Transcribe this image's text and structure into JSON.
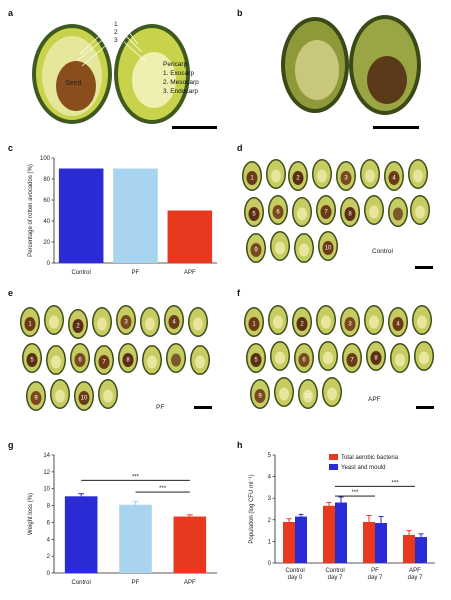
{
  "panels": {
    "a": "a",
    "b": "b",
    "c": "c",
    "d": "d",
    "e": "e",
    "f": "f",
    "g": "g",
    "h": "h"
  },
  "panel_a": {
    "markers": [
      "1",
      "2",
      "3"
    ],
    "seed_label": "Seed",
    "legend_title": "Pericarp",
    "legend_items": [
      "1. Exocarp",
      "2. Mesocarp",
      "3. Endocarp"
    ]
  },
  "panel_d": {
    "label": "Control",
    "fruit_numbers": [
      "1",
      "2",
      "3",
      "4",
      "5",
      "6",
      "7",
      "8",
      "9",
      "10"
    ]
  },
  "panel_e": {
    "label": "PF",
    "fruit_numbers": [
      "1",
      "2",
      "3",
      "4",
      "5",
      "6",
      "7",
      "8",
      "9",
      "10"
    ]
  },
  "panel_f": {
    "label": "APF",
    "fruit_numbers": [
      "1",
      "2",
      "3",
      "4",
      "5",
      "6",
      "7",
      "8",
      "9",
      "10"
    ]
  },
  "chart_data": [
    {
      "id": "c",
      "type": "bar",
      "categories": [
        "Control",
        "PF",
        "APF"
      ],
      "values": [
        90,
        90,
        50
      ],
      "ylabel": "Percentage of rotten avocados (%)",
      "ylim": [
        0,
        100
      ],
      "yticks": [
        "0",
        "20",
        "40",
        "60",
        "80",
        "100"
      ],
      "colors": [
        "#2b2bd6",
        "#a9d4f0",
        "#e8391f"
      ]
    },
    {
      "id": "g",
      "type": "bar",
      "categories": [
        "Control",
        "PF",
        "APF"
      ],
      "values": [
        9.1,
        8.1,
        6.7
      ],
      "errors": [
        0.3,
        0.4,
        0.2
      ],
      "ylabel": "Weight loss (%)",
      "ylim": [
        0,
        14
      ],
      "yticks": [
        "0",
        "2",
        "4",
        "6",
        "8",
        "10",
        "12",
        "14"
      ],
      "significance": [
        "***",
        "***"
      ],
      "colors": [
        "#2b2bd6",
        "#a9d4f0",
        "#e8391f"
      ]
    },
    {
      "id": "h",
      "type": "bar",
      "categories": [
        "Control day 0",
        "Control day 7",
        "PF day 7",
        "APF day 7"
      ],
      "category_lines": [
        [
          "Control",
          "day 0"
        ],
        [
          "Control",
          "day 7"
        ],
        [
          "PF",
          "day 7"
        ],
        [
          "APF",
          "day 7"
        ]
      ],
      "series": [
        {
          "name": "Total aerobic bacteria",
          "values": [
            1.9,
            2.65,
            1.9,
            1.3
          ],
          "errors": [
            0.15,
            0.15,
            0.3,
            0.2
          ],
          "color": "#e8391f"
        },
        {
          "name": "Yeast and mould",
          "values": [
            2.15,
            2.8,
            1.85,
            1.2
          ],
          "errors": [
            0.1,
            0.25,
            0.3,
            0.15
          ],
          "color": "#2b2bd6"
        }
      ],
      "ylabel": "Population (log CFU ml⁻¹)",
      "ylim": [
        0,
        5
      ],
      "yticks": [
        "0",
        "1",
        "2",
        "3",
        "4",
        "5"
      ],
      "significance": [
        "***",
        "***"
      ]
    }
  ]
}
